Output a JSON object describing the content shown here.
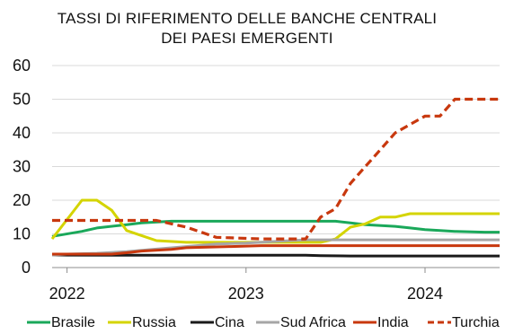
{
  "chart_data": {
    "type": "line",
    "title_line1": "TASSI DI RIFERIMENTO DELLE BANCHE CENTRALI",
    "title_line2": "DEI PAESI EMERGENTI",
    "ylim": [
      0,
      60
    ],
    "y_ticks": [
      "0",
      "10",
      "20",
      "30",
      "40",
      "50",
      "60"
    ],
    "x_ticks": [
      "2022",
      "2023",
      "2024"
    ],
    "x_range": [
      "2021-12",
      "2024-06"
    ],
    "grid": "horizontal",
    "legend_position": "bottom",
    "series": [
      {
        "name": "Brasile",
        "color": "#1aa85a",
        "dash": "solid",
        "points": [
          [
            "2021-12",
            9.25
          ],
          [
            "2022-02",
            10.75
          ],
          [
            "2022-03",
            11.75
          ],
          [
            "2022-05",
            12.75
          ],
          [
            "2022-06",
            13.25
          ],
          [
            "2022-08",
            13.75
          ],
          [
            "2023-07",
            13.75
          ],
          [
            "2023-08",
            13.25
          ],
          [
            "2023-09",
            12.75
          ],
          [
            "2023-11",
            12.25
          ],
          [
            "2023-12",
            11.75
          ],
          [
            "2024-01",
            11.25
          ],
          [
            "2024-03",
            10.75
          ],
          [
            "2024-05",
            10.5
          ],
          [
            "2024-06",
            10.5
          ]
        ]
      },
      {
        "name": "Russia",
        "color": "#d4d400",
        "dash": "solid",
        "points": [
          [
            "2021-12",
            8.5
          ],
          [
            "2022-02",
            20
          ],
          [
            "2022-03",
            20
          ],
          [
            "2022-04",
            17
          ],
          [
            "2022-05",
            11
          ],
          [
            "2022-06",
            9.5
          ],
          [
            "2022-07",
            8
          ],
          [
            "2022-09",
            7.5
          ],
          [
            "2023-06",
            7.5
          ],
          [
            "2023-07",
            8.5
          ],
          [
            "2023-08",
            12
          ],
          [
            "2023-09",
            13
          ],
          [
            "2023-10",
            15
          ],
          [
            "2023-11",
            15
          ],
          [
            "2023-12",
            16
          ],
          [
            "2024-06",
            16
          ]
        ]
      },
      {
        "name": "Cina",
        "color": "#1a1a1a",
        "dash": "solid",
        "points": [
          [
            "2021-12",
            3.8
          ],
          [
            "2022-01",
            3.7
          ],
          [
            "2022-08",
            3.65
          ],
          [
            "2023-05",
            3.65
          ],
          [
            "2023-06",
            3.55
          ],
          [
            "2023-08",
            3.45
          ],
          [
            "2024-06",
            3.45
          ]
        ]
      },
      {
        "name": "Sud Africa",
        "color": "#a6a6a6",
        "dash": "solid",
        "points": [
          [
            "2021-12",
            3.75
          ],
          [
            "2022-01",
            4
          ],
          [
            "2022-03",
            4.25
          ],
          [
            "2022-05",
            4.75
          ],
          [
            "2022-07",
            5.5
          ],
          [
            "2022-09",
            6.25
          ],
          [
            "2022-11",
            7
          ],
          [
            "2023-01",
            7.25
          ],
          [
            "2023-03",
            7.75
          ],
          [
            "2023-05",
            8.25
          ],
          [
            "2024-06",
            8.25
          ]
        ]
      },
      {
        "name": "India",
        "color": "#c8380e",
        "dash": "solid",
        "points": [
          [
            "2021-12",
            4
          ],
          [
            "2022-04",
            4
          ],
          [
            "2022-05",
            4.4
          ],
          [
            "2022-06",
            4.9
          ],
          [
            "2022-08",
            5.4
          ],
          [
            "2022-09",
            5.9
          ],
          [
            "2022-12",
            6.25
          ],
          [
            "2023-02",
            6.5
          ],
          [
            "2024-06",
            6.5
          ]
        ]
      },
      {
        "name": "Turchia",
        "color": "#c8380e",
        "dash": "dashed",
        "points": [
          [
            "2021-12",
            14
          ],
          [
            "2022-07",
            14
          ],
          [
            "2022-08",
            13
          ],
          [
            "2022-09",
            12
          ],
          [
            "2022-10",
            10.5
          ],
          [
            "2022-11",
            9
          ],
          [
            "2023-02",
            8.5
          ],
          [
            "2023-03",
            8.5
          ],
          [
            "2023-05",
            8.5
          ],
          [
            "2023-06",
            15
          ],
          [
            "2023-07",
            17.5
          ],
          [
            "2023-08",
            25
          ],
          [
            "2023-09",
            30
          ],
          [
            "2023-10",
            35
          ],
          [
            "2023-11",
            40
          ],
          [
            "2023-12",
            42.5
          ],
          [
            "2024-01",
            45
          ],
          [
            "2024-02",
            45
          ],
          [
            "2024-03",
            50
          ],
          [
            "2024-06",
            50
          ]
        ]
      }
    ]
  }
}
